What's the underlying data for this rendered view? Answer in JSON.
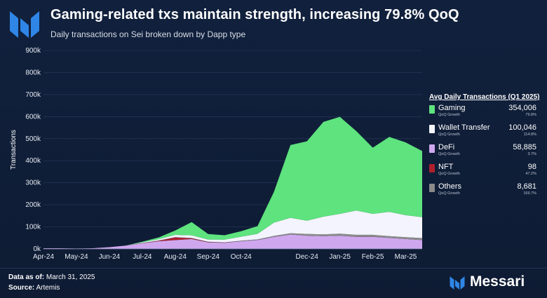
{
  "header": {
    "title": "Gaming-related txs maintain strength, increasing 79.8% QoQ",
    "subtitle": "Daily transactions on Sei broken down by Dapp type"
  },
  "legend": {
    "title": "Avg Daily Transactions (Q1 2025)",
    "growth_label": "QoQ Growth",
    "items": [
      {
        "name": "Gaming",
        "value": "354,006",
        "growth": "79.8%",
        "color": "#5ee37e"
      },
      {
        "name": "Wallet Transfer",
        "value": "100,046",
        "growth": "114.8%",
        "color": "#f4f4ff"
      },
      {
        "name": "DeFi",
        "value": "58,885",
        "growth": "3.7%",
        "color": "#cfa7ee"
      },
      {
        "name": "NFT",
        "value": "98",
        "growth": "47.2%",
        "color": "#b01f2e"
      },
      {
        "name": "Others",
        "value": "8,681",
        "growth": "169.7%",
        "color": "#8a8a8a"
      }
    ]
  },
  "footer": {
    "data_as_of_label": "Data as of:",
    "data_as_of_value": "March 31, 2025",
    "source_label": "Source:",
    "source_value": "Artemis"
  },
  "brand": {
    "name": "Messari",
    "color": "#2f86e6"
  },
  "chart_data": {
    "type": "area",
    "stacked": true,
    "ylabel": "Transactions",
    "ylim": [
      0,
      900000
    ],
    "yticks": [
      0,
      100000,
      200000,
      300000,
      400000,
      500000,
      600000,
      700000,
      800000,
      900000
    ],
    "ytick_labels": [
      "0k",
      "100k",
      "200k",
      "300k",
      "400k",
      "500k",
      "600k",
      "700k",
      "800k",
      "900k"
    ],
    "x": [
      "Apr-24",
      "mid Apr-24",
      "May-24",
      "mid May-24",
      "Jun-24",
      "mid Jun-24",
      "Jul-24",
      "mid Jul-24",
      "Aug-24",
      "mid Aug-24",
      "Sep-24",
      "mid Sep-24",
      "Oct-24",
      "mid Oct-24",
      "Nov-24",
      "mid Nov-24",
      "Dec-24",
      "mid Dec-24",
      "Jan-25",
      "mid Jan-25",
      "Feb-25",
      "mid Feb-25",
      "Mar-25",
      "end Mar-25"
    ],
    "xtick_labels": [
      "Apr-24",
      "May-24",
      "Jun-24",
      "Jul-24",
      "Aug-24",
      "Sep-24",
      "Oct-24",
      "Dec-24",
      "Jan-25",
      "Feb-25",
      "Mar-25"
    ],
    "xtick_index": [
      0,
      2,
      4,
      6,
      8,
      10,
      12,
      16,
      18,
      20,
      22
    ],
    "series": [
      {
        "name": "DeFi",
        "color": "#cfa7ee",
        "values": [
          3000,
          3000,
          2000,
          3000,
          8000,
          15000,
          25000,
          35000,
          40000,
          45000,
          30000,
          28000,
          35000,
          40000,
          55000,
          65000,
          60000,
          58000,
          60000,
          55000,
          55000,
          50000,
          45000,
          40000
        ]
      },
      {
        "name": "NFT",
        "color": "#b01f2e",
        "values": [
          0,
          0,
          0,
          0,
          0,
          0,
          1000,
          2000,
          12000,
          3000,
          1000,
          500,
          300,
          200,
          200,
          100,
          100,
          100,
          100,
          100,
          100,
          100,
          100,
          100
        ]
      },
      {
        "name": "Others",
        "color": "#8a8a8a",
        "values": [
          0,
          0,
          0,
          0,
          0,
          0,
          500,
          1000,
          1500,
          1500,
          1500,
          1500,
          2000,
          3000,
          4000,
          6000,
          8000,
          8000,
          9000,
          9000,
          9000,
          8000,
          8000,
          9000
        ]
      },
      {
        "name": "Wallet Transfer",
        "color": "#f4f4ff",
        "values": [
          0,
          0,
          0,
          0,
          0,
          0,
          3000,
          6000,
          10000,
          12000,
          10000,
          12000,
          18000,
          25000,
          60000,
          70000,
          60000,
          80000,
          90000,
          110000,
          95000,
          110000,
          100000,
          95000
        ]
      },
      {
        "name": "Gaming",
        "color": "#5ee37e",
        "values": [
          0,
          0,
          0,
          0,
          0,
          0,
          3000,
          8000,
          20000,
          60000,
          25000,
          20000,
          25000,
          35000,
          140000,
          330000,
          360000,
          430000,
          440000,
          360000,
          300000,
          340000,
          330000,
          300000
        ]
      }
    ]
  }
}
